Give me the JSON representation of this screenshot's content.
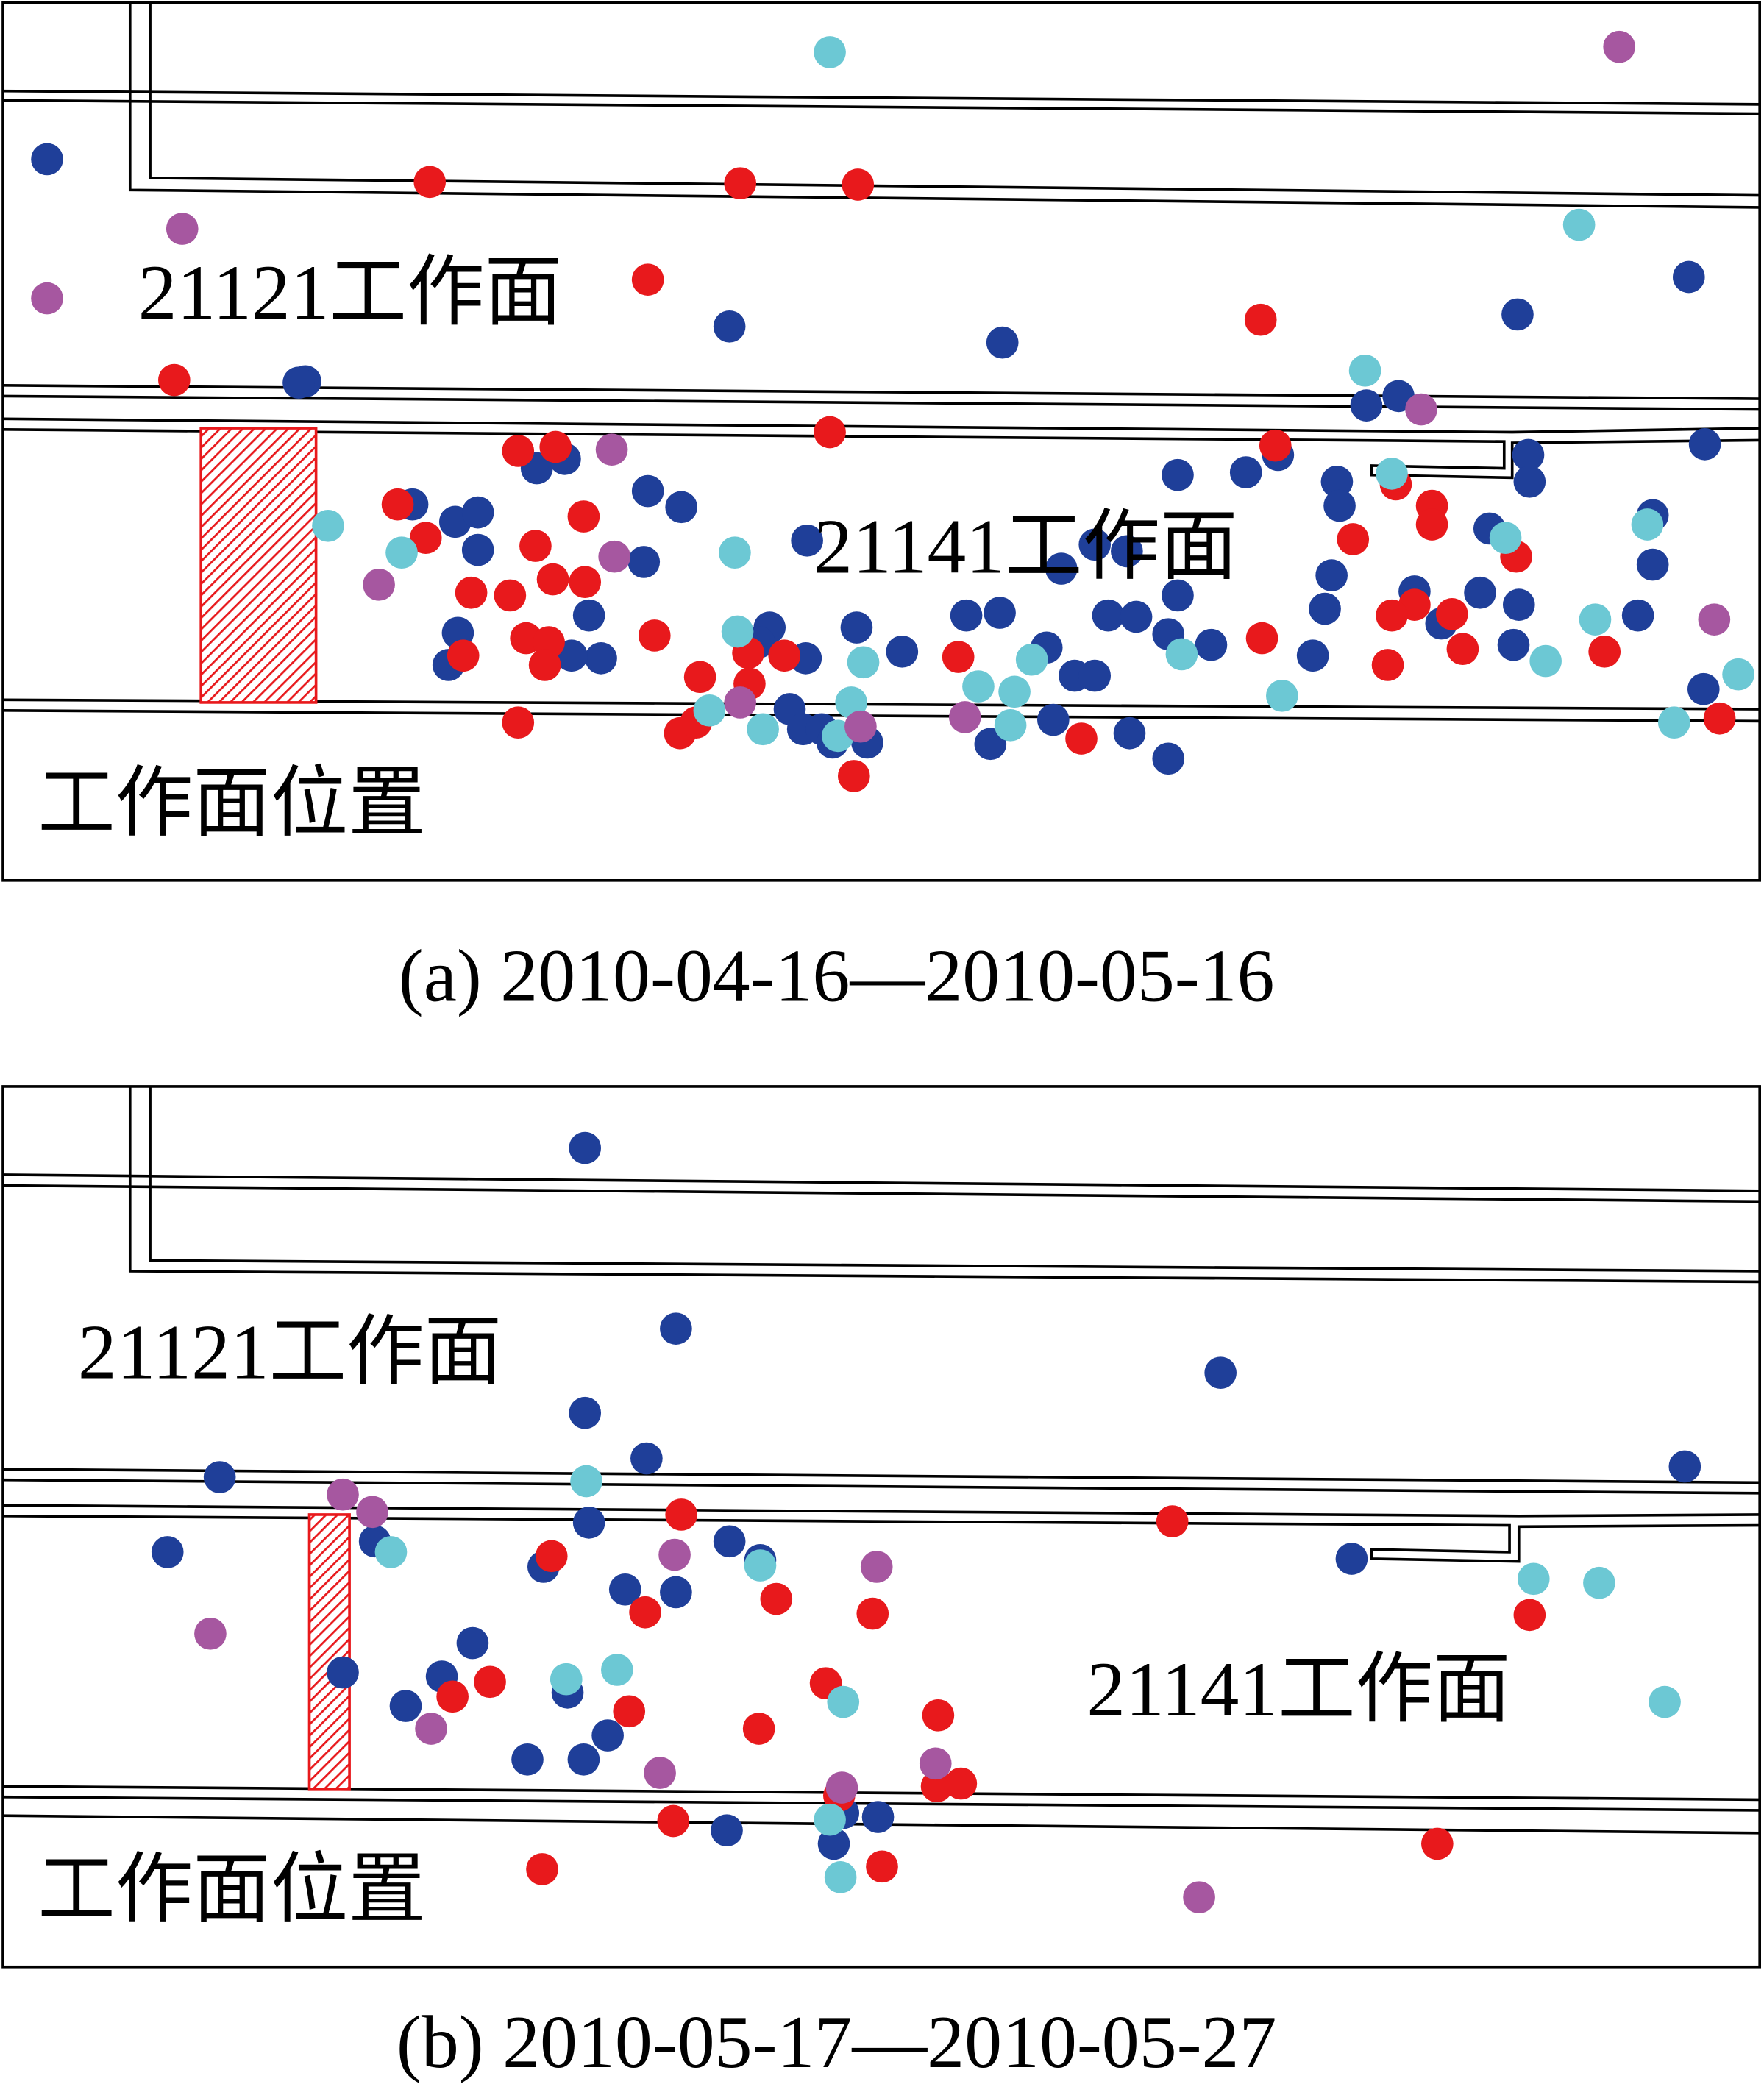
{
  "panels": [
    {
      "upper_face": "21121工作面",
      "lower_face": "21141工作面",
      "position": "工作面位置",
      "caption": "(a) 2010-04-16—2010-05-16"
    },
    {
      "upper_face": "21121工作面",
      "lower_face": "21141工作面",
      "position": "工作面位置",
      "caption": "(b) 2010-05-17—2010-05-27"
    }
  ]
}
